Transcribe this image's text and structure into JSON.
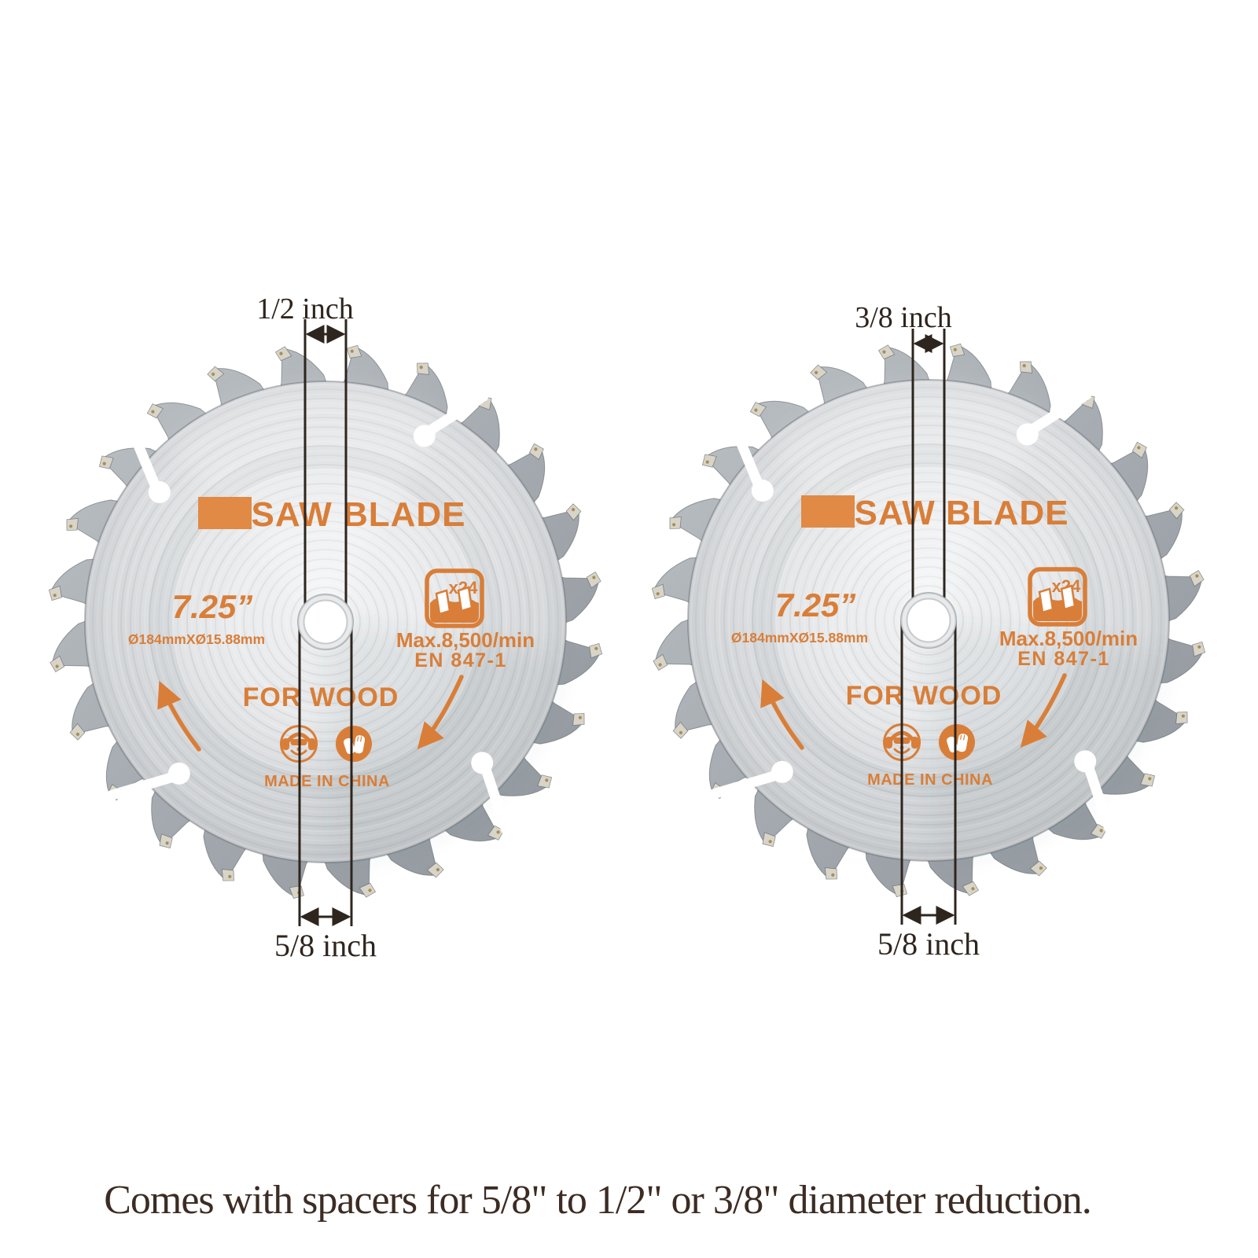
{
  "page": {
    "background": "#ffffff",
    "caption": "Comes with spacers for 5/8\" to 1/2\" or 3/8\" diameter reduction."
  },
  "colors": {
    "print_orange": "#D97E38",
    "brand_block": "#E08A45",
    "annotation_ink": "#2E251E",
    "caption_ink": "#3C2C23"
  },
  "blade_print": {
    "title": "SAW BLADE",
    "size_label": "7.25”",
    "spec_label": "Ø184mmXØ15.88mm",
    "teeth_badge": "x24",
    "max_speed": "Max.8,500/min",
    "standard": "EN 847-1",
    "material": "FOR WOOD",
    "origin": "MADE IN CHINA"
  },
  "icons": {
    "badge": "teeth-count-badge",
    "left_safety": "ear-protection-icon",
    "right_safety": "gloves-icon",
    "rotation": "rotation-direction-arrows"
  },
  "blades": [
    {
      "position": "left",
      "top_dimension": "1/2 inch",
      "bottom_dimension": "5/8 inch"
    },
    {
      "position": "right",
      "top_dimension": "3/8 inch",
      "bottom_dimension": "5/8 inch"
    }
  ]
}
